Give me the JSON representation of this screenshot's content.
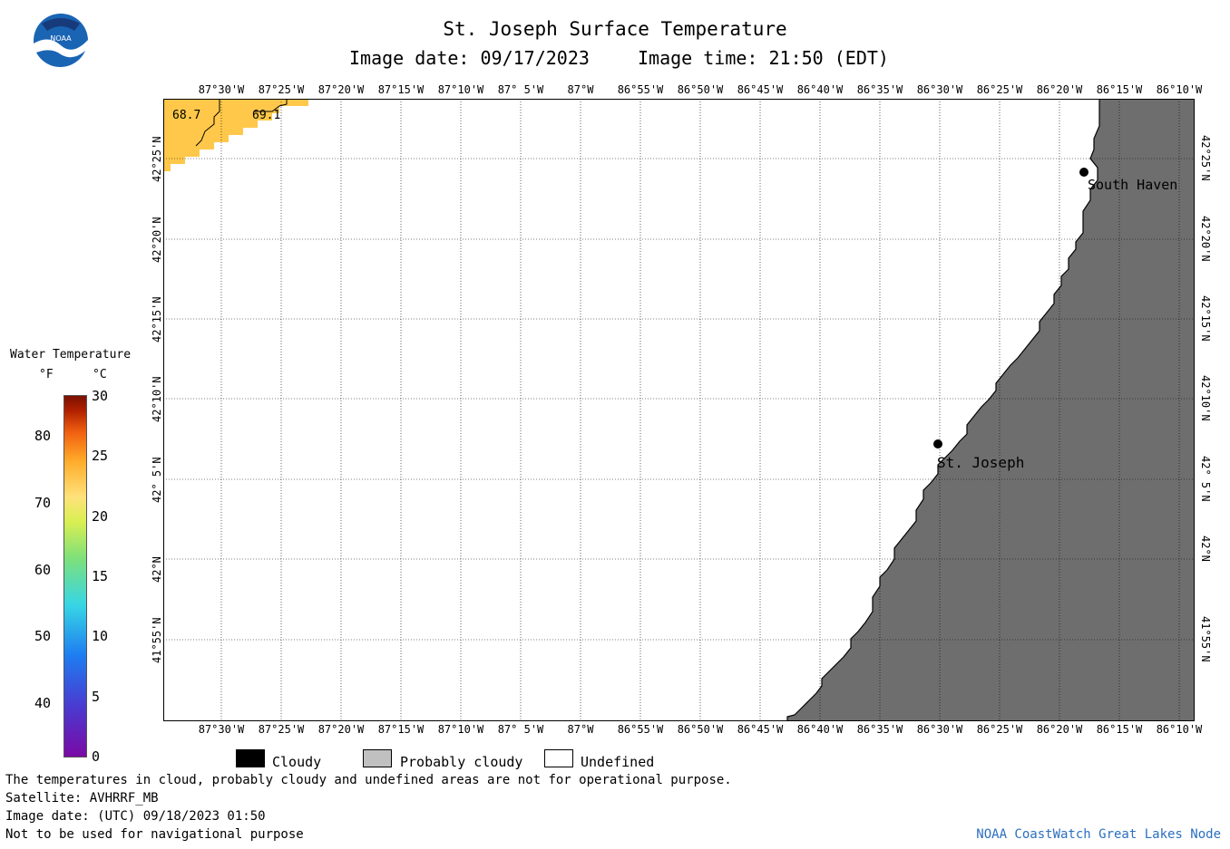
{
  "header": {
    "title": "St. Joseph Surface Temperature",
    "image_date_label": "Image date: 09/17/2023",
    "image_time_label": "Image time: 21:50 (EDT)"
  },
  "logo": {
    "text": "NOAA"
  },
  "map": {
    "lon_ticks": [
      "87°30'W",
      "87°25'W",
      "87°20'W",
      "87°15'W",
      "87°10'W",
      "87° 5'W",
      "87°W",
      "86°55'W",
      "86°50'W",
      "86°45'W",
      "86°40'W",
      "86°35'W",
      "86°30'W",
      "86°25'W",
      "86°20'W",
      "86°15'W",
      "86°10'W"
    ],
    "lat_ticks": [
      "42°25'N",
      "42°20'N",
      "42°15'N",
      "42°10'N",
      "42° 5'N",
      "42°N",
      "41°55'N"
    ],
    "contours": [
      "68.7",
      "69.1"
    ],
    "cities": [
      {
        "name": "South Haven"
      },
      {
        "name": "St. Joseph"
      }
    ],
    "colors": {
      "land": "#6e6e6e",
      "water_temp_patch": "#ffc84a",
      "undefined": "#ffffff"
    }
  },
  "colorbar": {
    "title": "Water Temperature",
    "unit_f": "°F",
    "unit_c": "°C",
    "f_labels": [
      "80",
      "70",
      "60",
      "50",
      "40"
    ],
    "c_labels": [
      "30",
      "25",
      "20",
      "15",
      "10",
      "5",
      "0"
    ]
  },
  "legend": {
    "items": [
      {
        "label": "Cloudy",
        "color": "#000000"
      },
      {
        "label": "Probably cloudy",
        "color": "#c0c0c0"
      },
      {
        "label": "Undefined",
        "color": "#ffffff"
      }
    ]
  },
  "footer": {
    "note": "The temperatures in cloud, probably cloudy and undefined areas are not for operational purpose.",
    "satellite": "Satellite: AVHRRF_MB",
    "utc_date": "Image date: (UTC) 09/18/2023  01:50",
    "nav_warning": "Not to be used for navigational purpose",
    "credit": "NOAA CoastWatch Great Lakes Node"
  }
}
